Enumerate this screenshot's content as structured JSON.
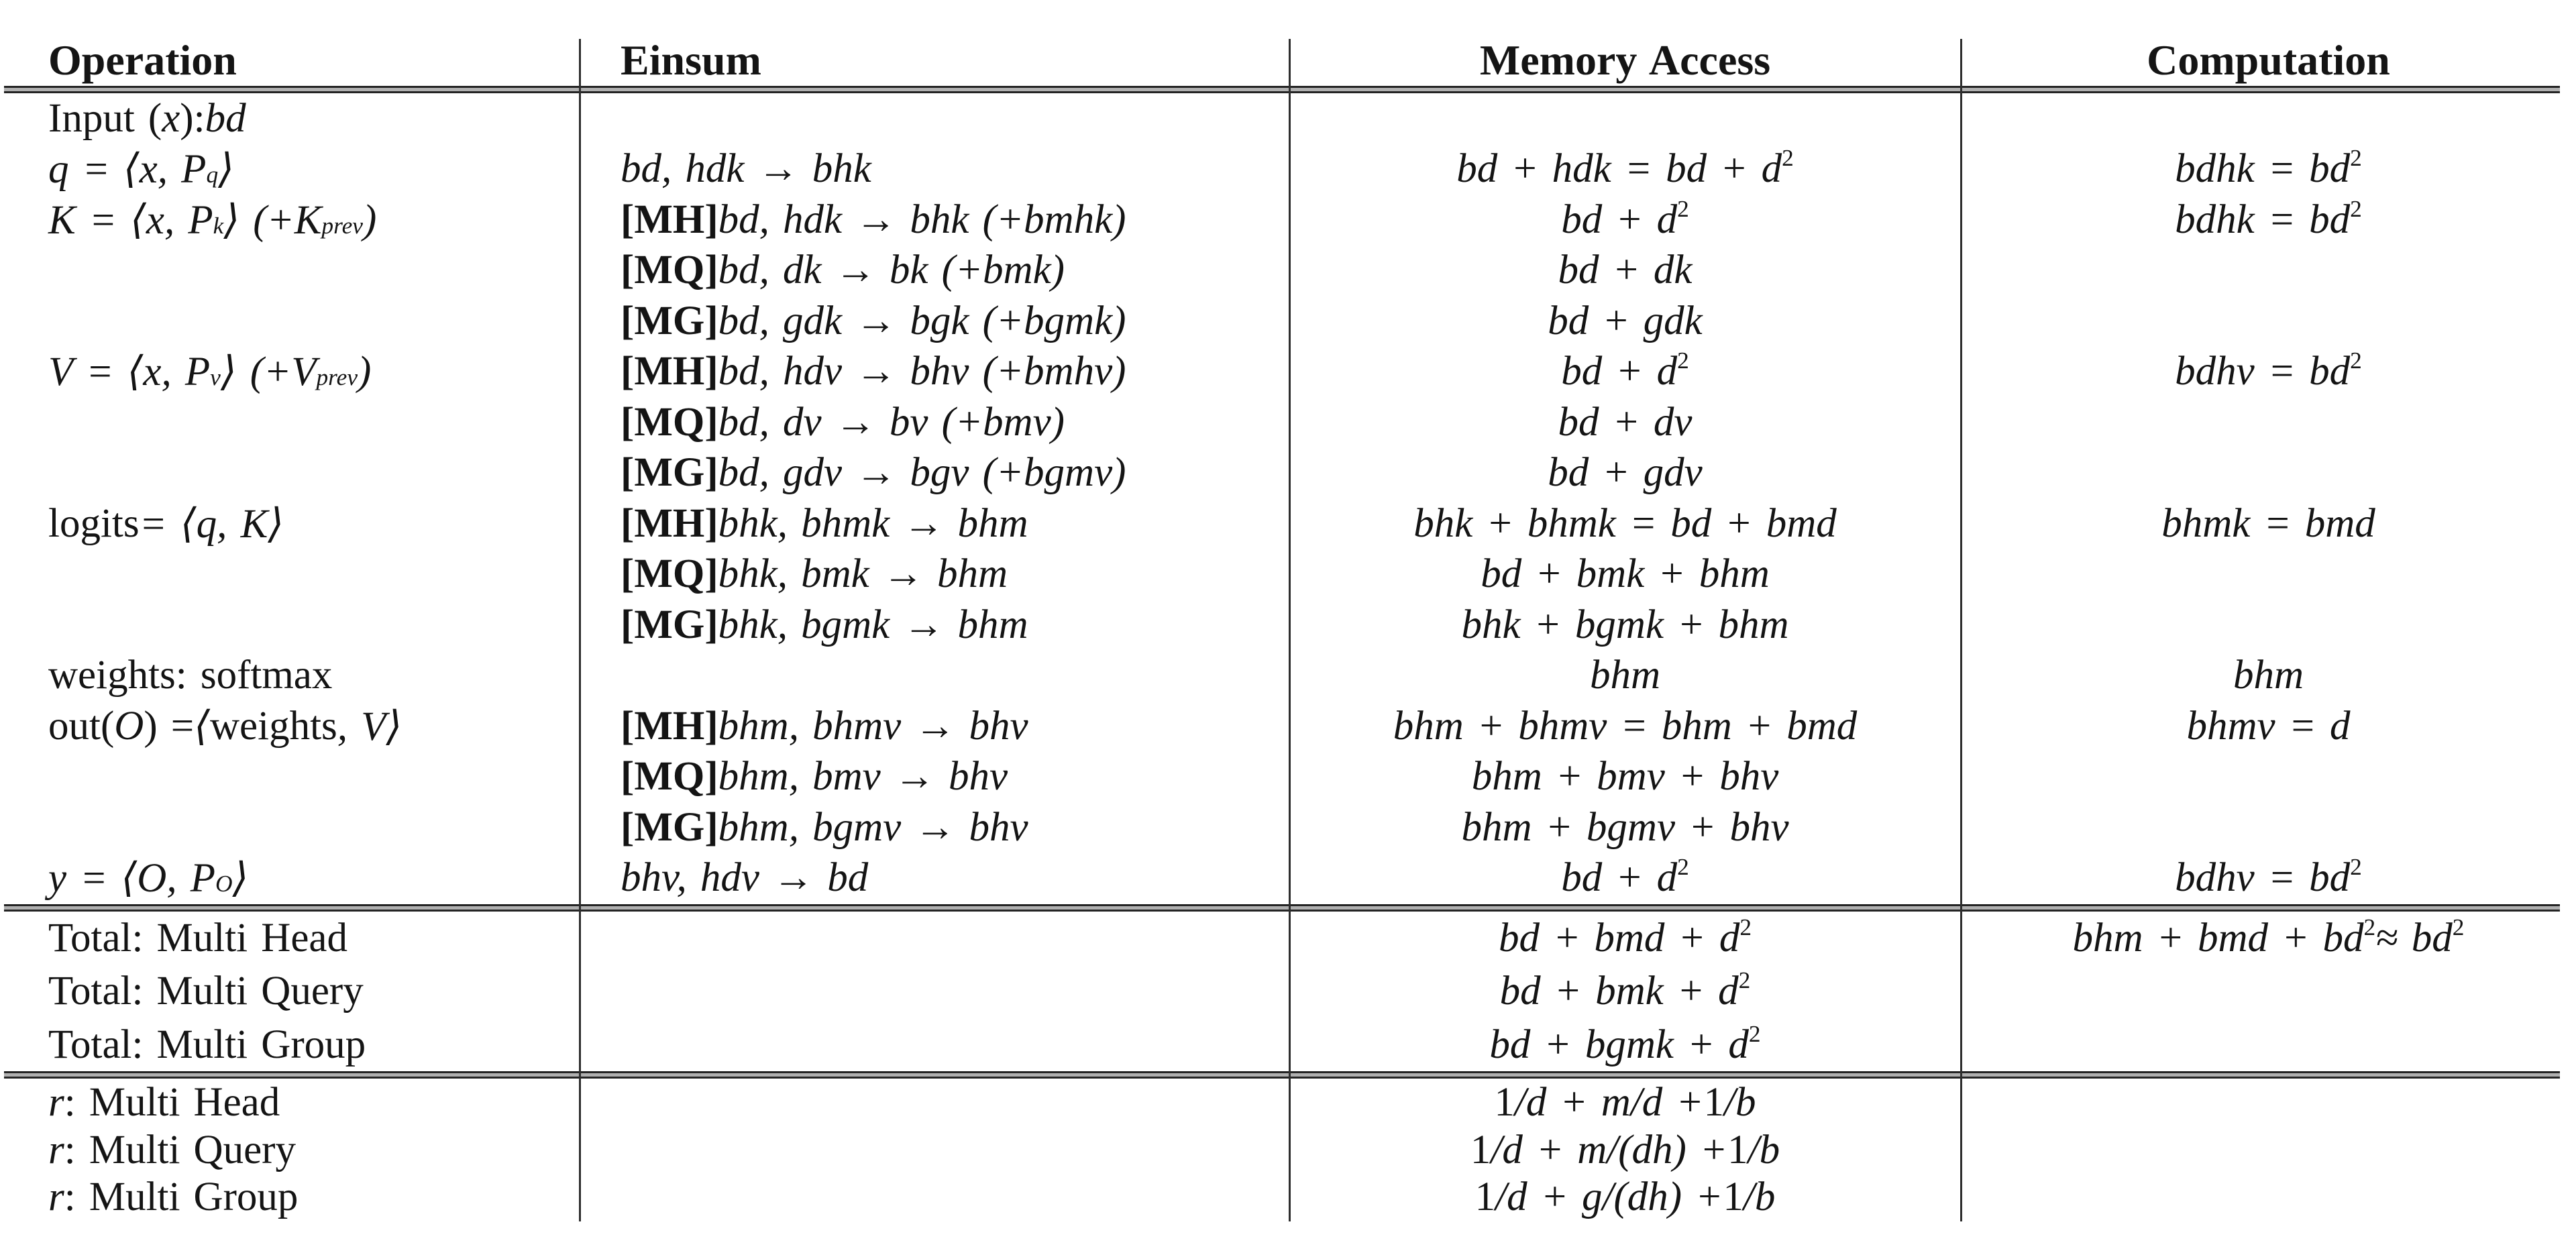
{
  "headers": {
    "operation": "Operation",
    "einsum": "Einsum",
    "memory_access": "Memory Access",
    "computation": "Computation"
  },
  "main_rows": [
    {
      "op": "[r]Input ([/r]x[r]): [/r]bd",
      "ein": "",
      "mem": "",
      "comp": ""
    },
    {
      "op": "q = ⟨x, P[sub]q[/sub]⟩",
      "ein": "bd, hdk → bhk",
      "mem": "bd + hdk = bd + d[sup]2[/sup]",
      "comp": "bdhk = bd[sup]2[/sup]"
    },
    {
      "op": "K = ⟨x, P[sub]k[/sub]⟩ (+K[sub]prev[/sub])",
      "ein": "[b][MH][/b] bd, hdk → bhk (+bmhk)",
      "mem": "bd + d[sup]2[/sup]",
      "comp": "bdhk = bd[sup]2[/sup]"
    },
    {
      "op": "",
      "ein": "[b][MQ][/b] bd, dk → bk (+bmk)",
      "mem": "bd + dk",
      "comp": ""
    },
    {
      "op": "",
      "ein": "[b][MG][/b] bd, gdk → bgk (+bgmk)",
      "mem": "bd + gdk",
      "comp": ""
    },
    {
      "op": "V = ⟨x, P[sub]v[/sub]⟩ (+V[sub]prev[/sub])",
      "ein": "[b][MH][/b] bd, hdv → bhv (+bmhv)",
      "mem": "bd + d[sup]2[/sup]",
      "comp": "bdhv = bd[sup]2[/sup]"
    },
    {
      "op": "",
      "ein": "[b][MQ][/b] bd, dv → bv (+bmv)",
      "mem": "bd + dv",
      "comp": ""
    },
    {
      "op": "",
      "ein": "[b][MG][/b] bd, gdv → bgv (+bgmv)",
      "mem": "bd + gdv",
      "comp": ""
    },
    {
      "op": "[r]logits[/r] = ⟨q, K⟩",
      "ein": "[b][MH][/b] bhk, bhmk → bhm",
      "mem": "bhk + bhmk = bd + bmd",
      "comp": "bhmk = bmd"
    },
    {
      "op": "",
      "ein": "[b][MQ][/b] bhk, bmk → bhm",
      "mem": "bd + bmk + bhm",
      "comp": ""
    },
    {
      "op": "",
      "ein": "[b][MG][/b] bhk, bgmk → bhm",
      "mem": "bhk + bgmk + bhm",
      "comp": ""
    },
    {
      "op": "[r]weights: softmax[/r]",
      "ein": "",
      "mem": "bhm",
      "comp": "bhm"
    },
    {
      "op": "[r]out([/r]O[r]) = [/r]⟨ [r]weights[/r], V⟩",
      "ein": "[b][MH][/b] bhm, bhmv → bhv",
      "mem": "bhm + bhmv = bhm + bmd",
      "comp": "bhmv = d"
    },
    {
      "op": "",
      "ein": "[b][MQ][/b] bhm, bmv → bhv",
      "mem": "bhm + bmv + bhv",
      "comp": ""
    },
    {
      "op": "",
      "ein": "[b][MG][/b] bhm, bgmv → bhv",
      "mem": "bhm + bgmv + bhv",
      "comp": ""
    },
    {
      "op": "y = ⟨O, P[sub]O[/sub]⟩",
      "ein": "bhv, hdv → bd",
      "mem": "bd + d[sup]2[/sup]",
      "comp": "bdhv = bd[sup]2[/sup]"
    }
  ],
  "total_rows": [
    {
      "op": "[r]Total: Multi Head[/r]",
      "ein": "",
      "mem": "bd + bmd + d[sup]2[/sup]",
      "comp": "bhm + bmd + bd[sup]2[/sup] ≈ bd[sup]2[/sup]"
    },
    {
      "op": "[r]Total: Multi Query[/r]",
      "ein": "",
      "mem": "bd + bmk + d[sup]2[/sup]",
      "comp": ""
    },
    {
      "op": "[r]Total: Multi Group[/r]",
      "ein": "",
      "mem": "bd + bgmk + d[sup]2[/sup]",
      "comp": ""
    }
  ],
  "ratio_rows": [
    {
      "op": "r[r]: Multi Head[/r]",
      "ein": "",
      "mem": "[r]1[/r]/d + m/d + [r]1[/r]/b",
      "comp": ""
    },
    {
      "op": "r[r]: Multi Query[/r]",
      "ein": "",
      "mem": "[r]1[/r]/d + m/(dh) + [r]1[/r]/b",
      "comp": ""
    },
    {
      "op": "r[r]: Multi Group[/r]",
      "ein": "",
      "mem": "[r]1[/r]/d + g/(dh) + [r]1[/r]/b",
      "comp": ""
    }
  ]
}
